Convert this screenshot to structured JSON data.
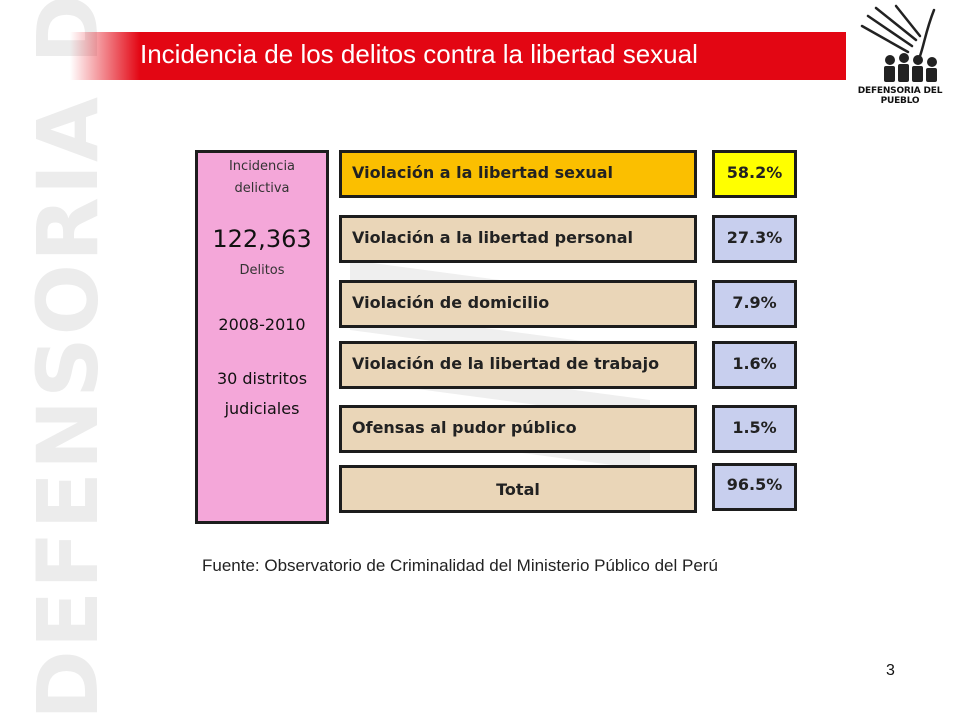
{
  "watermark": {
    "side_text": "DEFENSORIA DEL PUEBLO"
  },
  "header": {
    "title": "Incidencia de los delitos contra la libertad sexual"
  },
  "logo": {
    "text": "DEFENSORIA DEL PUEBLO"
  },
  "summary": {
    "label_line1": "Incidencia",
    "label_line2": "delictiva",
    "total": "122,363",
    "unit": "Delitos",
    "period": "2008-2010",
    "districts_line1": "30 distritos",
    "districts_line2": "judiciales"
  },
  "rows": [
    {
      "label": "Violación a la libertad sexual",
      "pct": "58.2%"
    },
    {
      "label": "Violación a la libertad personal",
      "pct": "27.3%"
    },
    {
      "label": "Violación de domicilio",
      "pct": "7.9%"
    },
    {
      "label": "Violación de la libertad de trabajo",
      "pct": "1.6%"
    },
    {
      "label": "Ofensas al pudor público",
      "pct": "1.5%"
    }
  ],
  "total_row": {
    "label": "Total",
    "pct": "96.5%"
  },
  "source": "Fuente: Observatorio de Criminalidad del Ministerio Público del Perú",
  "page_number": "3",
  "colors": {
    "title_band": "#e30613",
    "pink_panel": "#f4a7d9",
    "highlight_row": "#fbbf00",
    "highlight_pct": "#ffff00",
    "row": "#ead6b8",
    "pct": "#c8cfee"
  }
}
